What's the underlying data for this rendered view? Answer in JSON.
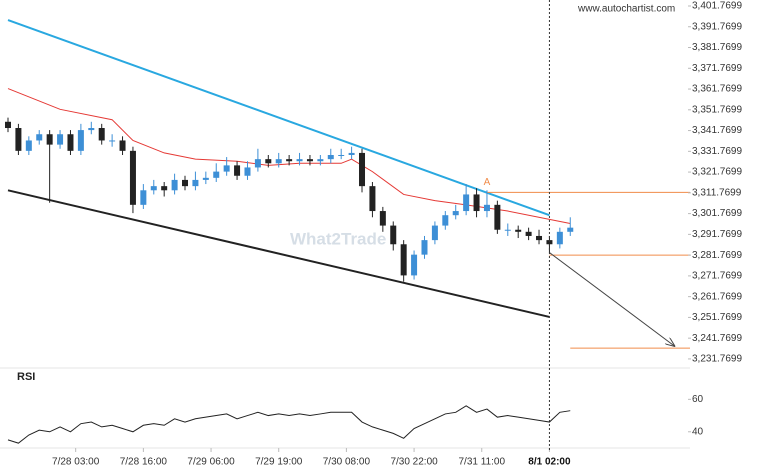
{
  "chart_data": [
    {
      "type": "candlestick",
      "source": "www.autochartist.com",
      "watermark": "What2Trade",
      "up_color": "#3d8fd6",
      "down_color": "#222222",
      "x": [
        0,
        2,
        4,
        6,
        8,
        10,
        12,
        14,
        16,
        18,
        20,
        22,
        24,
        26,
        28,
        30,
        32,
        34,
        36,
        38,
        40,
        42,
        44,
        46,
        48,
        50,
        52,
        54,
        56,
        58,
        60,
        62,
        64,
        66,
        68,
        70,
        72,
        74,
        76,
        78,
        80,
        82,
        84,
        86,
        88,
        90,
        92,
        94,
        96,
        98,
        100,
        102,
        104,
        106,
        108
      ],
      "open": [
        3346,
        3343,
        3332,
        3337,
        3340,
        3335,
        3340,
        3332,
        3342,
        3343,
        3337,
        3337,
        3332,
        3306,
        3313,
        3315,
        3313,
        3318,
        3315,
        3318,
        3319,
        3322,
        3325,
        3320,
        3324,
        3328,
        3326,
        3328,
        3327,
        3328,
        3327,
        3328,
        3330,
        3330,
        3331,
        3315,
        3303,
        3296,
        3287,
        3272,
        3282,
        3289,
        3296,
        3301,
        3303,
        3311,
        3303,
        3306,
        3294,
        3294,
        3293,
        3291,
        3289,
        3287,
        3293
      ],
      "high": [
        3348,
        3345,
        3339,
        3342,
        3342,
        3342,
        3342,
        3345,
        3346,
        3345,
        3340,
        3339,
        3334,
        3316,
        3318,
        3317,
        3321,
        3320,
        3322,
        3322,
        3326,
        3329,
        3327,
        3327,
        3333,
        3330,
        3331,
        3330,
        3331,
        3330,
        3330,
        3333,
        3333,
        3334,
        3333,
        3317,
        3305,
        3298,
        3289,
        3284,
        3291,
        3298,
        3303,
        3306,
        3316,
        3314,
        3313,
        3308,
        3297,
        3296,
        3295,
        3294,
        3291,
        3295,
        3300
      ],
      "low": [
        3341,
        3330,
        3330,
        3335,
        3307,
        3333,
        3330,
        3330,
        3340,
        3335,
        3334,
        3330,
        3302,
        3304,
        3311,
        3310,
        3311,
        3313,
        3313,
        3316,
        3317,
        3320,
        3318,
        3318,
        3322,
        3324,
        3324,
        3325,
        3325,
        3325,
        3325,
        3326,
        3328,
        3328,
        3312,
        3300,
        3293,
        3284,
        3269,
        3270,
        3280,
        3287,
        3294,
        3299,
        3301,
        3300,
        3300,
        3292,
        3291,
        3290,
        3289,
        3287,
        3283,
        3285,
        3291
      ],
      "close": [
        3343,
        3332,
        3337,
        3340,
        3335,
        3340,
        3332,
        3342,
        3343,
        3337,
        3337,
        3332,
        3306,
        3313,
        3315,
        3313,
        3318,
        3315,
        3318,
        3319,
        3322,
        3325,
        3320,
        3324,
        3328,
        3326,
        3328,
        3327,
        3328,
        3327,
        3328,
        3330,
        3330,
        3331,
        3315,
        3303,
        3296,
        3287,
        3272,
        3282,
        3289,
        3296,
        3301,
        3303,
        3311,
        3303,
        3306,
        3294,
        3294,
        3293,
        3291,
        3289,
        3287,
        3293,
        3295
      ],
      "overlays": [
        {
          "kind": "line",
          "color": "#e53935",
          "x": [
            0,
            10,
            20,
            24,
            30,
            36,
            44,
            50,
            56,
            64,
            66,
            70,
            76,
            82,
            88,
            96,
            104,
            108
          ],
          "values": [
            3362,
            3352,
            3347,
            3337,
            3331,
            3328,
            3327,
            3325,
            3326,
            3326,
            3328,
            3322,
            3311,
            3308,
            3306,
            3303,
            3299,
            3297
          ]
        },
        {
          "kind": "trend",
          "color": "#29a8e0",
          "x": [
            0,
            104
          ],
          "values": [
            3395,
            3301
          ]
        },
        {
          "kind": "trend",
          "color": "#222222",
          "x": [
            0,
            104
          ],
          "values": [
            3313,
            3252
          ]
        },
        {
          "kind": "level",
          "color": "#f08c4a",
          "x": [
            92,
            131
          ],
          "values": [
            3312,
            3312
          ]
        },
        {
          "kind": "level",
          "color": "#f08c4a",
          "x": [
            104,
            131
          ],
          "values": [
            3281.77,
            3281.77
          ]
        },
        {
          "kind": "level",
          "color": "#f08c4a",
          "x": [
            108,
            131
          ],
          "values": [
            3237,
            3237
          ]
        },
        {
          "kind": "arrow",
          "color": "#444444",
          "x": [
            104,
            128
          ],
          "values": [
            3283,
            3238
          ]
        }
      ],
      "annotations": [
        {
          "text": "A",
          "x": 92,
          "value": 3315,
          "color": "#f08c4a"
        }
      ],
      "xlim": [
        0,
        131
      ],
      "xticks": [
        {
          "value": 13,
          "label": "7/28 03:00"
        },
        {
          "value": 26,
          "label": "7/28 16:00"
        },
        {
          "value": 39,
          "label": "7/29 06:00"
        },
        {
          "value": 52,
          "label": "7/29 19:00"
        },
        {
          "value": 65,
          "label": "7/30 08:00"
        },
        {
          "value": 78,
          "label": "7/30 22:00"
        },
        {
          "value": 91,
          "label": "7/31 11:00"
        },
        {
          "value": 104,
          "label": "8/1 02:00"
        }
      ],
      "ylim": [
        3227.4,
        3404.66
      ],
      "yticks": [
        {
          "value": 3401.7699,
          "label": "3,401.7699"
        },
        {
          "value": 3391.7699,
          "label": "3,391.7699"
        },
        {
          "value": 3381.7699,
          "label": "3,381.7699"
        },
        {
          "value": 3371.7699,
          "label": "3,371.7699"
        },
        {
          "value": 3361.7699,
          "label": "3,361.7699"
        },
        {
          "value": 3351.7699,
          "label": "3,351.7699"
        },
        {
          "value": 3341.7699,
          "label": "3,341.7699"
        },
        {
          "value": 3331.7699,
          "label": "3,331.7699"
        },
        {
          "value": 3321.7699,
          "label": "3,321.7699"
        },
        {
          "value": 3311.7699,
          "label": "3,311.7699"
        },
        {
          "value": 3301.7699,
          "label": "3,301.7699"
        },
        {
          "value": 3291.7699,
          "label": "3,291.7699"
        },
        {
          "value": 3281.7699,
          "label": "3,281.7699"
        },
        {
          "value": 3271.7699,
          "label": "3,271.7699"
        },
        {
          "value": 3261.7699,
          "label": "3,261.7699"
        },
        {
          "value": 3251.7699,
          "label": "3,251.7699"
        },
        {
          "value": 3241.7699,
          "label": "3,241.7699"
        },
        {
          "value": 3231.7699,
          "label": "3,231.7699"
        }
      ]
    },
    {
      "type": "line",
      "title": "RSI",
      "color": "#222222",
      "x": [
        0,
        2,
        4,
        6,
        8,
        10,
        12,
        14,
        16,
        18,
        20,
        22,
        24,
        26,
        28,
        30,
        32,
        34,
        36,
        38,
        40,
        42,
        44,
        46,
        48,
        50,
        52,
        54,
        56,
        58,
        60,
        62,
        64,
        66,
        68,
        70,
        72,
        74,
        76,
        78,
        80,
        82,
        84,
        86,
        88,
        90,
        92,
        94,
        96,
        98,
        100,
        102,
        104,
        106,
        108
      ],
      "values": [
        35,
        33,
        38,
        41,
        40,
        43,
        40,
        45,
        46,
        43,
        44,
        42,
        40,
        44,
        45,
        44,
        48,
        46,
        48,
        49,
        50,
        51,
        48,
        50,
        52,
        50,
        51,
        50,
        51,
        50,
        51,
        52,
        52,
        52,
        46,
        43,
        41,
        39,
        36,
        42,
        45,
        48,
        51,
        52,
        56,
        52,
        54,
        49,
        50,
        49,
        48,
        47,
        46,
        52,
        53
      ],
      "ylim": [
        30,
        75
      ],
      "yticks": [
        60,
        40
      ]
    }
  ]
}
